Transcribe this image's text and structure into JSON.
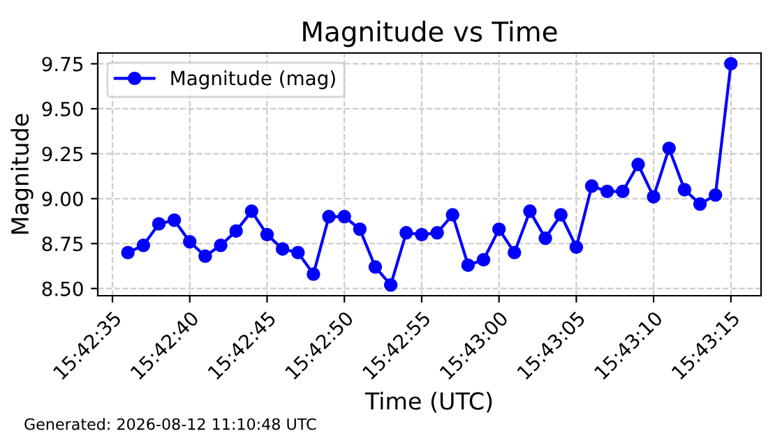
{
  "chart_data": {
    "type": "line",
    "title": "Magnitude vs Time",
    "xlabel": "Time (UTC)",
    "ylabel": "Magnitude",
    "x": [
      15.71,
      15.710278,
      15.710556,
      15.710833,
      15.711111,
      15.711389,
      15.711667,
      15.711944,
      15.712222,
      15.7125,
      15.712778,
      15.713056,
      15.713333,
      15.713611,
      15.713889,
      15.714167,
      15.714444,
      15.714722,
      15.715,
      15.715278,
      15.715556,
      15.715833,
      15.716111,
      15.716389,
      15.716667,
      15.716944,
      15.717222,
      15.7175,
      15.717778,
      15.718056,
      15.718333,
      15.718611,
      15.718889,
      15.719167,
      15.719444,
      15.719722,
      15.72,
      15.720278,
      15.720556,
      15.720833
    ],
    "series": [
      {
        "name": "Magnitude (mag)",
        "color": "#0000ff",
        "values": [
          8.7,
          8.74,
          8.86,
          8.88,
          8.76,
          8.68,
          8.74,
          8.82,
          8.93,
          8.8,
          8.72,
          8.7,
          8.58,
          8.9,
          8.9,
          8.83,
          8.62,
          8.52,
          8.81,
          8.8,
          8.81,
          8.91,
          8.63,
          8.66,
          8.83,
          8.7,
          8.93,
          8.78,
          8.91,
          8.73,
          9.07,
          9.04,
          9.04,
          9.19,
          9.01,
          9.28,
          9.05,
          8.97,
          9.02,
          9.75
        ]
      }
    ],
    "xlim": [
      15.709458,
      15.721375
    ],
    "xticks": [
      {
        "value": 15.709722,
        "label": "15:42:35"
      },
      {
        "value": 15.711111,
        "label": "15:42:40"
      },
      {
        "value": 15.7125,
        "label": "15:42:45"
      },
      {
        "value": 15.713889,
        "label": "15:42:50"
      },
      {
        "value": 15.715278,
        "label": "15:42:55"
      },
      {
        "value": 15.716667,
        "label": "15:43:00"
      },
      {
        "value": 15.718056,
        "label": "15:43:05"
      },
      {
        "value": 15.719444,
        "label": "15:43:10"
      },
      {
        "value": 15.720833,
        "label": "15:43:15"
      }
    ],
    "ylim": [
      8.46,
      9.81
    ],
    "yticks": [
      {
        "value": 8.5,
        "label": "8.50"
      },
      {
        "value": 8.75,
        "label": "8.75"
      },
      {
        "value": 9.0,
        "label": "9.00"
      },
      {
        "value": 9.25,
        "label": "9.25"
      },
      {
        "value": 9.5,
        "label": "9.50"
      },
      {
        "value": 9.75,
        "label": "9.75"
      }
    ],
    "grid": true,
    "legend": "top left",
    "marker": "circle",
    "line_style": "solid",
    "annotations": [
      "Generated: 2026-08-12 11:10:48 UTC"
    ]
  }
}
